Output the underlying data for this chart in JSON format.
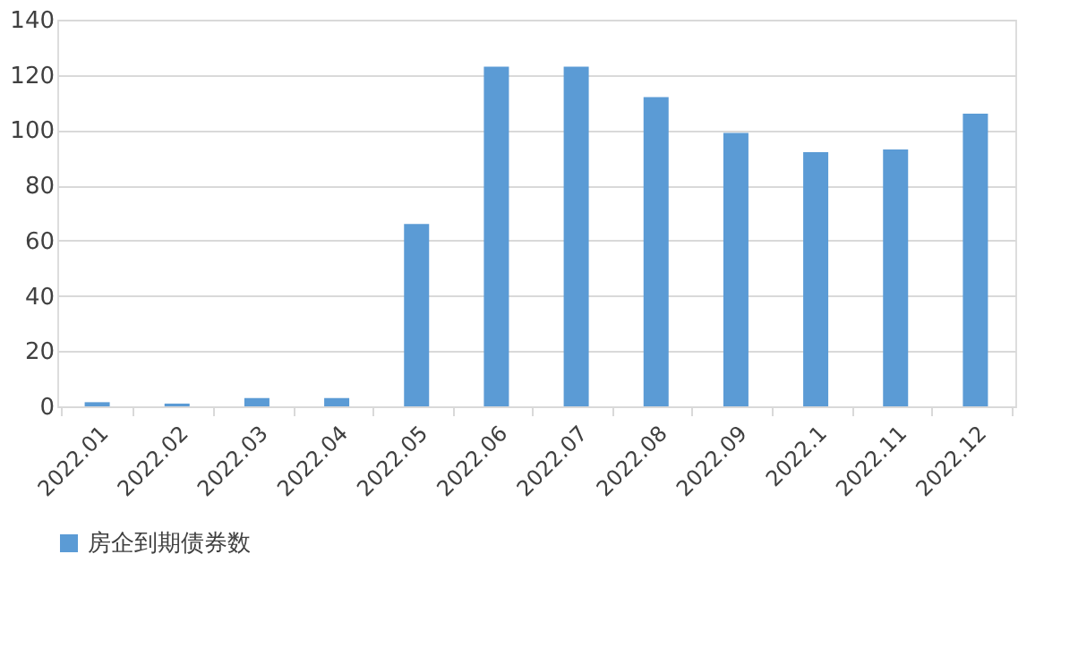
{
  "chart_data": {
    "type": "bar",
    "categories": [
      "2022.01",
      "2022.02",
      "2022.03",
      "2022.04",
      "2022.05",
      "2022.06",
      "2022.07",
      "2022.08",
      "2022.09",
      "2022.1",
      "2022.11",
      "2022.12"
    ],
    "series": [
      {
        "name": "房企到期债券数",
        "color": "#5b9bd5",
        "values": [
          1.5,
          1,
          3,
          3,
          66,
          123,
          123,
          112,
          99,
          92,
          93,
          106
        ]
      }
    ],
    "ylim": [
      0,
      140
    ],
    "yticks": [
      0,
      20,
      40,
      60,
      80,
      100,
      120,
      140
    ],
    "grid": "y",
    "legend": "bottom"
  }
}
